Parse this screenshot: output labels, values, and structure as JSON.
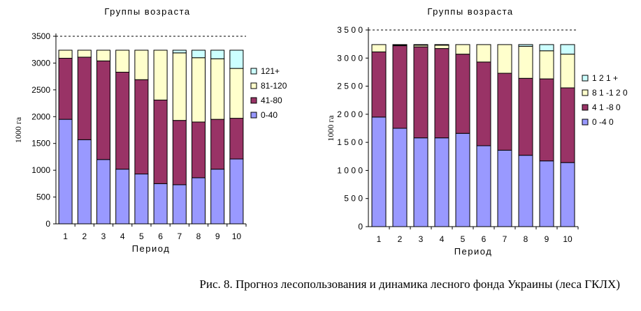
{
  "caption": "Рис. 8. Прогноз лесопользования и динамика лесного фонда Украины (леса ГКЛХ)",
  "colors": {
    "0-40": "#9999ff",
    "41-80": "#993366",
    "81-120": "#ffffcc",
    "121+": "#ccffff"
  },
  "chart_data": [
    {
      "type": "bar",
      "stacked": true,
      "title": "Группы возраста",
      "xlabel": "Период",
      "ylabel": "1000 га",
      "ylim": [
        0,
        3500
      ],
      "yticks": [
        0,
        500,
        1000,
        1500,
        2000,
        2500,
        3000,
        3500
      ],
      "ytick_labels": [
        "0",
        "500",
        "1000",
        "1500",
        "2000",
        "2500",
        "3000",
        "3500"
      ],
      "categories": [
        "1",
        "2",
        "3",
        "4",
        "5",
        "6",
        "7",
        "8",
        "9",
        "10"
      ],
      "grid": "dashed line at 3500",
      "legend_position": "right",
      "legend": [
        "121+",
        "81-120",
        "41-80",
        "0-40"
      ],
      "series": [
        {
          "name": "0-40",
          "values": [
            1950,
            1570,
            1200,
            1020,
            930,
            750,
            730,
            860,
            1020,
            1210
          ]
        },
        {
          "name": "41-80",
          "values": [
            1140,
            1540,
            1840,
            1810,
            1760,
            1560,
            1200,
            1040,
            930,
            760
          ]
        },
        {
          "name": "81-120",
          "values": [
            150,
            130,
            200,
            410,
            550,
            930,
            1260,
            1200,
            1130,
            930
          ]
        },
        {
          "name": "121+",
          "values": [
            0,
            0,
            0,
            0,
            0,
            0,
            50,
            140,
            160,
            340
          ]
        }
      ]
    },
    {
      "type": "bar",
      "stacked": true,
      "title": "Группы возраста",
      "xlabel": "Период",
      "ylabel": "1000 га",
      "ylim": [
        0,
        3500
      ],
      "yticks": [
        0,
        500,
        1000,
        1500,
        2000,
        2500,
        3000,
        3500
      ],
      "ytick_labels": [
        "0",
        "5 0 0",
        "1 0 0 0",
        "1 5 0 0",
        "2 0 0 0",
        "2 5 0 0",
        "3 0 0 0",
        "3 5 0 0"
      ],
      "categories": [
        "1",
        "2",
        "3",
        "4",
        "5",
        "6",
        "7",
        "8",
        "9",
        "10"
      ],
      "grid": "dashed line at 3500",
      "legend_position": "right",
      "legend": [
        "1 2 1 +",
        "8 1 -1 2 0",
        "4 1 -8 0",
        "0 -4 0"
      ],
      "series": [
        {
          "name": "0-40",
          "values": [
            1950,
            1750,
            1580,
            1580,
            1660,
            1440,
            1360,
            1270,
            1170,
            1140
          ]
        },
        {
          "name": "41-80",
          "values": [
            1160,
            1470,
            1620,
            1590,
            1410,
            1490,
            1370,
            1370,
            1460,
            1330
          ]
        },
        {
          "name": "81-120",
          "values": [
            130,
            10,
            30,
            60,
            170,
            310,
            510,
            570,
            500,
            600
          ]
        },
        {
          "name": "121+",
          "values": [
            0,
            10,
            10,
            10,
            0,
            0,
            0,
            30,
            110,
            170
          ]
        }
      ]
    }
  ]
}
